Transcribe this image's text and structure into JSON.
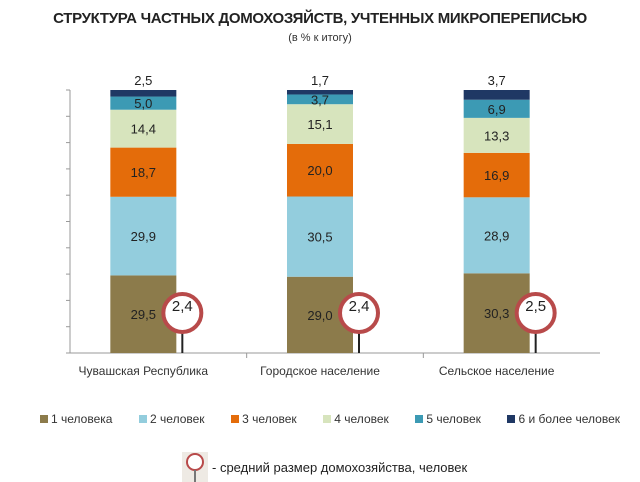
{
  "chart_data": {
    "type": "bar",
    "stacked": true,
    "title": "СТРУКТУРА ЧАСТНЫХ ДОМОХОЗЯЙСТВ, УЧТЕННЫХ МИКРОПЕРЕПИСЬЮ",
    "subtitle": "(в % к итогу)",
    "categories": [
      "Чувашская Республика",
      "Городское население",
      "Сельское население"
    ],
    "ylim": [
      0,
      100
    ],
    "grid": false,
    "legend_placement": "bottom",
    "series": [
      {
        "name": "1 человека",
        "values": [
          29.5,
          29.0,
          30.3
        ],
        "labels": [
          "29,5",
          "29,0",
          "30,3"
        ],
        "color": "#8C7B4B"
      },
      {
        "name": "2 человек",
        "values": [
          29.9,
          30.5,
          28.9
        ],
        "labels": [
          "29,9",
          "30,5",
          "28,9"
        ],
        "color": "#93CDDD"
      },
      {
        "name": "3 человек",
        "values": [
          18.7,
          20.0,
          16.9
        ],
        "labels": [
          "18,7",
          "20,0",
          "16,9"
        ],
        "color": "#E46C0A"
      },
      {
        "name": "4 человек",
        "values": [
          14.4,
          15.1,
          13.3
        ],
        "labels": [
          "14,4",
          "15,1",
          "13,3"
        ],
        "color": "#D7E4BD"
      },
      {
        "name": "5 человек",
        "values": [
          5.0,
          3.7,
          6.9
        ],
        "labels": [
          "5,0",
          "3,7",
          "6,9"
        ],
        "color": "#3C9AB4"
      },
      {
        "name": "6 и более человек",
        "values": [
          2.5,
          1.7,
          3.7
        ],
        "labels": [
          "2,5",
          "1,7",
          "3,7"
        ],
        "color": "#1F3864"
      }
    ],
    "avg_size": {
      "name": "- средний размер домохозяйства, человек",
      "values": [
        2.4,
        2.4,
        2.5
      ],
      "labels": [
        "2,4",
        "2,4",
        "2,5"
      ],
      "color": "#B84A4A"
    }
  }
}
